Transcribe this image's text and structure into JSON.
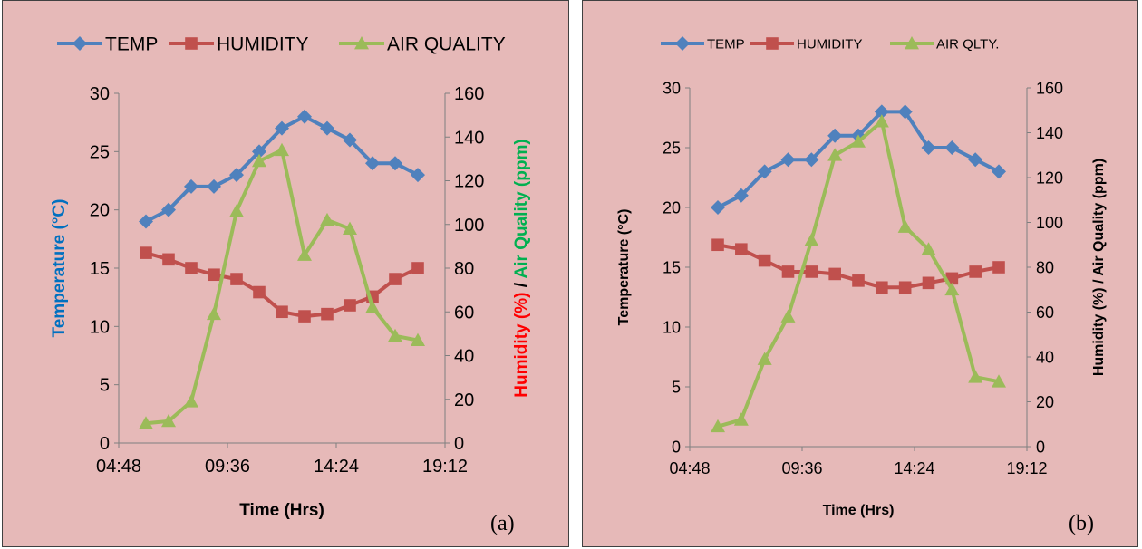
{
  "colors": {
    "panel_bg": "#e6b9b8",
    "temp": "#4f81bd",
    "humidity": "#c0504d",
    "air_quality": "#9bbb59",
    "temp_axis_label": "#0070c0",
    "humidity_axis_label": "#ff0000",
    "air_axis_label": "#00b050"
  },
  "chart_data": [
    {
      "panel": "a",
      "type": "line",
      "panel_label": "(a)",
      "xlabel": "Time (Hrs)",
      "xticks": [
        "04:48",
        "09:36",
        "14:24",
        "19:12"
      ],
      "xlim": [
        "04:48",
        "19:12"
      ],
      "ylabel_left": "Temperature (°C)",
      "ylim_left": [
        0,
        30
      ],
      "yticks_left": [
        "0",
        "5",
        "10",
        "15",
        "20",
        "25",
        "30"
      ],
      "ylabel_right_parts": [
        "Humidity (%)",
        " / ",
        "Air Quality (ppm)"
      ],
      "ylim_right": [
        0,
        160
      ],
      "yticks_right": [
        "0",
        "20",
        "40",
        "60",
        "80",
        "100",
        "120",
        "140",
        "160"
      ],
      "legend_position": "top",
      "x": [
        "06:00",
        "07:00",
        "08:00",
        "09:00",
        "10:00",
        "11:00",
        "12:00",
        "13:00",
        "14:00",
        "15:00",
        "16:00",
        "17:00",
        "18:00"
      ],
      "series": [
        {
          "name": "TEMP",
          "axis": "left",
          "marker": "diamond",
          "values": [
            19,
            20,
            22,
            22,
            23,
            25,
            27,
            28,
            27,
            26,
            24,
            24,
            23
          ]
        },
        {
          "name": "HUMIDITY",
          "axis": "right",
          "marker": "square",
          "values": [
            87,
            84,
            80,
            77,
            75,
            69,
            60,
            58,
            59,
            63,
            67,
            75,
            80
          ]
        },
        {
          "name": "AIR QUALITY",
          "axis": "right",
          "marker": "triangle",
          "values": [
            9,
            10,
            19,
            59,
            106,
            129,
            134,
            86,
            102,
            98,
            62,
            49,
            47
          ]
        }
      ]
    },
    {
      "panel": "b",
      "type": "line",
      "panel_label": "(b)",
      "xlabel": "Time (Hrs)",
      "xticks": [
        "04:48",
        "09:36",
        "14:24",
        "19:12"
      ],
      "xlim": [
        "04:48",
        "19:12"
      ],
      "ylabel_left": "Temperature (°C)",
      "ylim_left": [
        0,
        30
      ],
      "yticks_left": [
        "0",
        "5",
        "10",
        "15",
        "20",
        "25",
        "30"
      ],
      "ylabel_right_parts": [
        "Humidity (%)",
        " / ",
        "Air Quality (ppm)"
      ],
      "ylim_right": [
        0,
        160
      ],
      "yticks_right": [
        "0",
        "20",
        "40",
        "60",
        "80",
        "100",
        "120",
        "140",
        "160"
      ],
      "legend_position": "top",
      "x": [
        "06:00",
        "07:00",
        "08:00",
        "09:00",
        "10:00",
        "11:00",
        "12:00",
        "13:00",
        "14:00",
        "15:00",
        "16:00",
        "17:00",
        "18:00"
      ],
      "series": [
        {
          "name": "TEMP",
          "axis": "left",
          "marker": "diamond",
          "values": [
            20,
            21,
            23,
            24,
            24,
            26,
            26,
            28,
            28,
            25,
            25,
            24,
            23
          ]
        },
        {
          "name": "HUMIDITY",
          "axis": "right",
          "marker": "square",
          "values": [
            90,
            88,
            83,
            78,
            78,
            77,
            74,
            71,
            71,
            73,
            75,
            78,
            80
          ]
        },
        {
          "name": "AIR QLTY.",
          "axis": "right",
          "marker": "triangle",
          "values": [
            9,
            12,
            39,
            58,
            92,
            130,
            136,
            145,
            98,
            88,
            70,
            31,
            29
          ]
        }
      ]
    }
  ]
}
